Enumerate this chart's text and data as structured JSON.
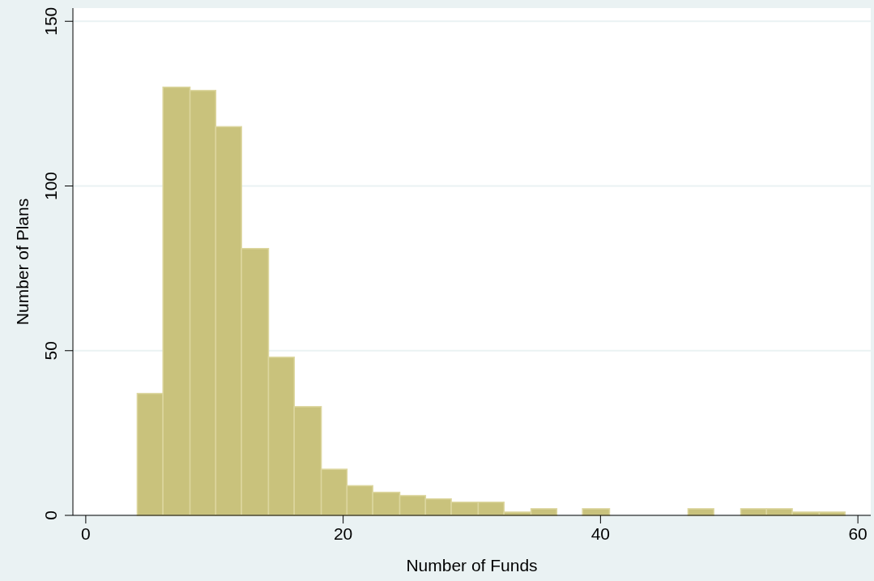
{
  "chart_data": {
    "type": "histogram",
    "xlabel": "Number of Funds",
    "ylabel": "Number of Plans",
    "bins": [
      4,
      6.0,
      8.1,
      10.1,
      12.1,
      14.2,
      16.2,
      18.3,
      20.3,
      22.3,
      24.4,
      26.4,
      28.4,
      30.5,
      32.5,
      34.6,
      36.6,
      38.6,
      40.7,
      46.8,
      48.8,
      50.9,
      52.9,
      54.9,
      57.0,
      59
    ],
    "values": [
      37,
      130,
      129,
      118,
      81,
      48,
      33,
      14,
      9,
      7,
      6,
      5,
      4,
      4,
      1,
      2,
      0,
      2,
      0,
      2,
      0,
      2,
      2,
      1,
      1
    ],
    "color": "#c9c27c",
    "xlim": [
      -1,
      61
    ],
    "xticks": [
      0,
      20,
      40,
      60
    ],
    "ylim": [
      0,
      154
    ],
    "yticks": [
      0,
      50,
      100,
      150
    ],
    "grid": "y"
  }
}
